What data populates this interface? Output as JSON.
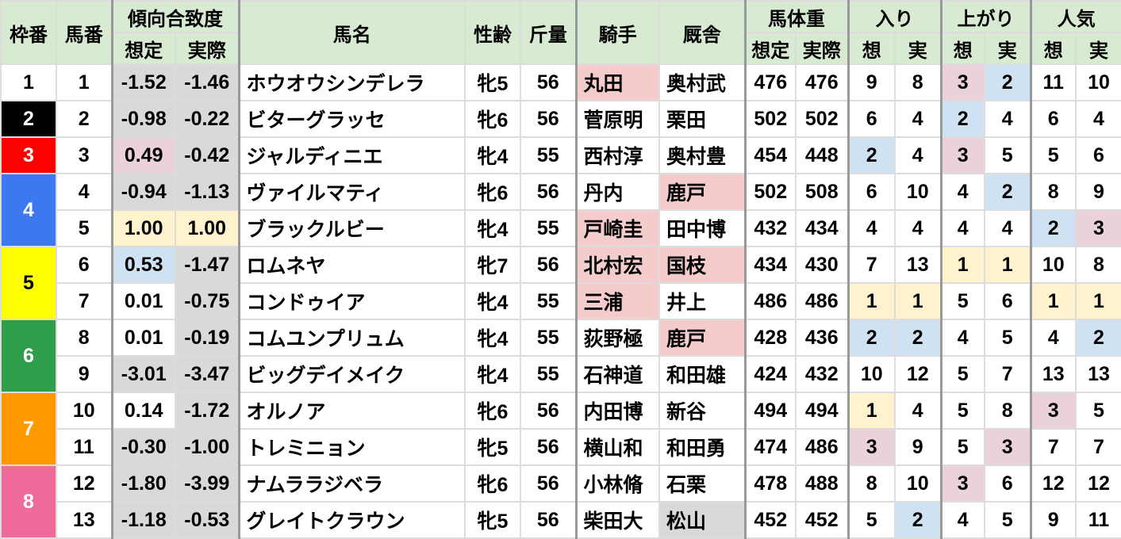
{
  "header": {
    "waku": "枠番",
    "umaban": "馬番",
    "fit": "傾向合致度",
    "fit_sotei": "想定",
    "fit_jissai": "実際",
    "name": "馬名",
    "sex_age": "性齢",
    "weight_carried": "斤量",
    "jockey": "騎手",
    "trainer": "厩舎",
    "body_weight": "馬体重",
    "bw_sotei": "想定",
    "bw_jissai": "実際",
    "iri": "入り",
    "iri_so": "想",
    "iri_ji": "実",
    "agari": "上がり",
    "agari_so": "想",
    "agari_ji": "実",
    "ninki": "人気",
    "ninki_so": "想",
    "ninki_ji": "実"
  },
  "cell_colors": {
    "g": "#d9d9d9",
    "p": "#ead1dc",
    "b": "#cfe2f3",
    "y": "#fff2cc",
    "r": "#f4cccc"
  },
  "frames": [
    {
      "label": "1",
      "bg": "#ffffff",
      "fg": "#000000",
      "rows": 1
    },
    {
      "label": "2",
      "bg": "#000000",
      "fg": "#ffffff",
      "rows": 1
    },
    {
      "label": "3",
      "bg": "#ff0000",
      "fg": "#ffffff",
      "rows": 1
    },
    {
      "label": "4",
      "bg": "#3c78f0",
      "fg": "#ffffff",
      "rows": 2
    },
    {
      "label": "5",
      "bg": "#ffff00",
      "fg": "#000000",
      "rows": 2
    },
    {
      "label": "6",
      "bg": "#2e9e4a",
      "fg": "#ffffff",
      "rows": 2
    },
    {
      "label": "7",
      "bg": "#ff9900",
      "fg": "#ffffff",
      "rows": 2
    },
    {
      "label": "8",
      "bg": "#ef6b9b",
      "fg": "#ffffff",
      "rows": 2
    }
  ],
  "rows": [
    {
      "umaban": "1",
      "fit_sotei": "-1.52",
      "fit_jissai": "-1.46",
      "name": "ホウオウシンデレラ",
      "sex_age": "牝5",
      "kinryo": "56",
      "jockey": "丸田",
      "trainer": "奥村武",
      "bw_sotei": "476",
      "bw_jissai": "476",
      "iri_so": "9",
      "iri_ji": "8",
      "agari_so": "3",
      "agari_ji": "2",
      "ninki_so": "11",
      "ninki_ji": "10",
      "colors": {
        "fit_sotei": "g",
        "fit_jissai": "g",
        "jockey": "r",
        "agari_so": "p",
        "agari_ji": "b"
      }
    },
    {
      "umaban": "2",
      "fit_sotei": "-0.98",
      "fit_jissai": "-0.22",
      "name": "ビターグラッセ",
      "sex_age": "牝6",
      "kinryo": "56",
      "jockey": "菅原明",
      "trainer": "栗田",
      "bw_sotei": "502",
      "bw_jissai": "502",
      "iri_so": "6",
      "iri_ji": "4",
      "agari_so": "2",
      "agari_ji": "4",
      "ninki_so": "6",
      "ninki_ji": "4",
      "colors": {
        "fit_sotei": "g",
        "fit_jissai": "g",
        "agari_so": "b"
      }
    },
    {
      "umaban": "3",
      "fit_sotei": "0.49",
      "fit_jissai": "-0.42",
      "name": "ジャルディニエ",
      "sex_age": "牝4",
      "kinryo": "55",
      "jockey": "西村淳",
      "trainer": "奥村豊",
      "bw_sotei": "454",
      "bw_jissai": "448",
      "iri_so": "2",
      "iri_ji": "4",
      "agari_so": "3",
      "agari_ji": "5",
      "ninki_so": "5",
      "ninki_ji": "6",
      "colors": {
        "fit_sotei": "p",
        "fit_jissai": "g",
        "iri_so": "b",
        "agari_so": "p"
      }
    },
    {
      "umaban": "4",
      "fit_sotei": "-0.94",
      "fit_jissai": "-1.13",
      "name": "ヴァイルマティ",
      "sex_age": "牝6",
      "kinryo": "56",
      "jockey": "丹内",
      "trainer": "鹿戸",
      "bw_sotei": "502",
      "bw_jissai": "508",
      "iri_so": "6",
      "iri_ji": "10",
      "agari_so": "4",
      "agari_ji": "2",
      "ninki_so": "8",
      "ninki_ji": "9",
      "colors": {
        "fit_sotei": "g",
        "fit_jissai": "g",
        "trainer": "r",
        "agari_ji": "b"
      }
    },
    {
      "umaban": "5",
      "fit_sotei": "1.00",
      "fit_jissai": "1.00",
      "name": "ブラックルビー",
      "sex_age": "牝4",
      "kinryo": "55",
      "jockey": "戸崎圭",
      "trainer": "田中博",
      "bw_sotei": "432",
      "bw_jissai": "434",
      "iri_so": "4",
      "iri_ji": "4",
      "agari_so": "4",
      "agari_ji": "4",
      "ninki_so": "2",
      "ninki_ji": "3",
      "colors": {
        "fit_sotei": "y",
        "fit_jissai": "y",
        "jockey": "r",
        "ninki_so": "b",
        "ninki_ji": "p"
      }
    },
    {
      "umaban": "6",
      "fit_sotei": "0.53",
      "fit_jissai": "-1.47",
      "name": "ロムネヤ",
      "sex_age": "牝7",
      "kinryo": "56",
      "jockey": "北村宏",
      "trainer": "国枝",
      "bw_sotei": "434",
      "bw_jissai": "430",
      "iri_so": "7",
      "iri_ji": "13",
      "agari_so": "1",
      "agari_ji": "1",
      "ninki_so": "10",
      "ninki_ji": "8",
      "colors": {
        "fit_sotei": "b",
        "fit_jissai": "g",
        "jockey": "r",
        "trainer": "r",
        "agari_so": "y",
        "agari_ji": "y"
      }
    },
    {
      "umaban": "7",
      "fit_sotei": "0.01",
      "fit_jissai": "-0.75",
      "name": "コンドゥイア",
      "sex_age": "牝4",
      "kinryo": "55",
      "jockey": "三浦",
      "trainer": "井上",
      "bw_sotei": "486",
      "bw_jissai": "486",
      "iri_so": "1",
      "iri_ji": "1",
      "agari_so": "5",
      "agari_ji": "6",
      "ninki_so": "1",
      "ninki_ji": "1",
      "colors": {
        "fit_jissai": "g",
        "jockey": "r",
        "iri_so": "y",
        "iri_ji": "y",
        "ninki_so": "y",
        "ninki_ji": "y"
      }
    },
    {
      "umaban": "8",
      "fit_sotei": "0.01",
      "fit_jissai": "-0.19",
      "name": "コムユンプリュム",
      "sex_age": "牝4",
      "kinryo": "55",
      "jockey": "荻野極",
      "trainer": "鹿戸",
      "bw_sotei": "428",
      "bw_jissai": "436",
      "iri_so": "2",
      "iri_ji": "2",
      "agari_so": "4",
      "agari_ji": "5",
      "ninki_so": "4",
      "ninki_ji": "2",
      "colors": {
        "fit_jissai": "g",
        "trainer": "r",
        "iri_so": "b",
        "iri_ji": "b",
        "ninki_ji": "b"
      }
    },
    {
      "umaban": "9",
      "fit_sotei": "-3.01",
      "fit_jissai": "-3.47",
      "name": "ビッグデイメイク",
      "sex_age": "牝4",
      "kinryo": "55",
      "jockey": "石神道",
      "trainer": "和田雄",
      "bw_sotei": "424",
      "bw_jissai": "432",
      "iri_so": "10",
      "iri_ji": "12",
      "agari_so": "5",
      "agari_ji": "7",
      "ninki_so": "13",
      "ninki_ji": "13",
      "colors": {
        "fit_sotei": "g",
        "fit_jissai": "g"
      }
    },
    {
      "umaban": "10",
      "fit_sotei": "0.14",
      "fit_jissai": "-1.72",
      "name": "オルノア",
      "sex_age": "牝6",
      "kinryo": "56",
      "jockey": "内田博",
      "trainer": "新谷",
      "bw_sotei": "494",
      "bw_jissai": "494",
      "iri_so": "1",
      "iri_ji": "4",
      "agari_so": "5",
      "agari_ji": "8",
      "ninki_so": "3",
      "ninki_ji": "5",
      "colors": {
        "fit_jissai": "g",
        "iri_so": "y",
        "ninki_so": "p"
      }
    },
    {
      "umaban": "11",
      "fit_sotei": "-0.30",
      "fit_jissai": "-1.00",
      "name": "トレミニョン",
      "sex_age": "牝5",
      "kinryo": "56",
      "jockey": "横山和",
      "trainer": "和田勇",
      "bw_sotei": "474",
      "bw_jissai": "486",
      "iri_so": "3",
      "iri_ji": "9",
      "agari_so": "5",
      "agari_ji": "3",
      "ninki_so": "7",
      "ninki_ji": "7",
      "colors": {
        "fit_sotei": "g",
        "fit_jissai": "g",
        "iri_so": "p",
        "agari_ji": "p"
      }
    },
    {
      "umaban": "12",
      "fit_sotei": "-1.80",
      "fit_jissai": "-3.99",
      "name": "ナムララジベラ",
      "sex_age": "牝6",
      "kinryo": "56",
      "jockey": "小林脩",
      "trainer": "石栗",
      "bw_sotei": "478",
      "bw_jissai": "488",
      "iri_so": "8",
      "iri_ji": "10",
      "agari_so": "3",
      "agari_ji": "6",
      "ninki_so": "12",
      "ninki_ji": "12",
      "colors": {
        "fit_sotei": "g",
        "fit_jissai": "g",
        "agari_so": "p"
      }
    },
    {
      "umaban": "13",
      "fit_sotei": "-1.18",
      "fit_jissai": "-0.53",
      "name": "グレイトクラウン",
      "sex_age": "牝5",
      "kinryo": "56",
      "jockey": "柴田大",
      "trainer": "松山",
      "bw_sotei": "452",
      "bw_jissai": "452",
      "iri_so": "5",
      "iri_ji": "2",
      "agari_so": "4",
      "agari_ji": "5",
      "ninki_so": "9",
      "ninki_ji": "11",
      "colors": {
        "fit_sotei": "g",
        "fit_jissai": "g",
        "trainer": "g",
        "iri_ji": "b"
      }
    }
  ]
}
